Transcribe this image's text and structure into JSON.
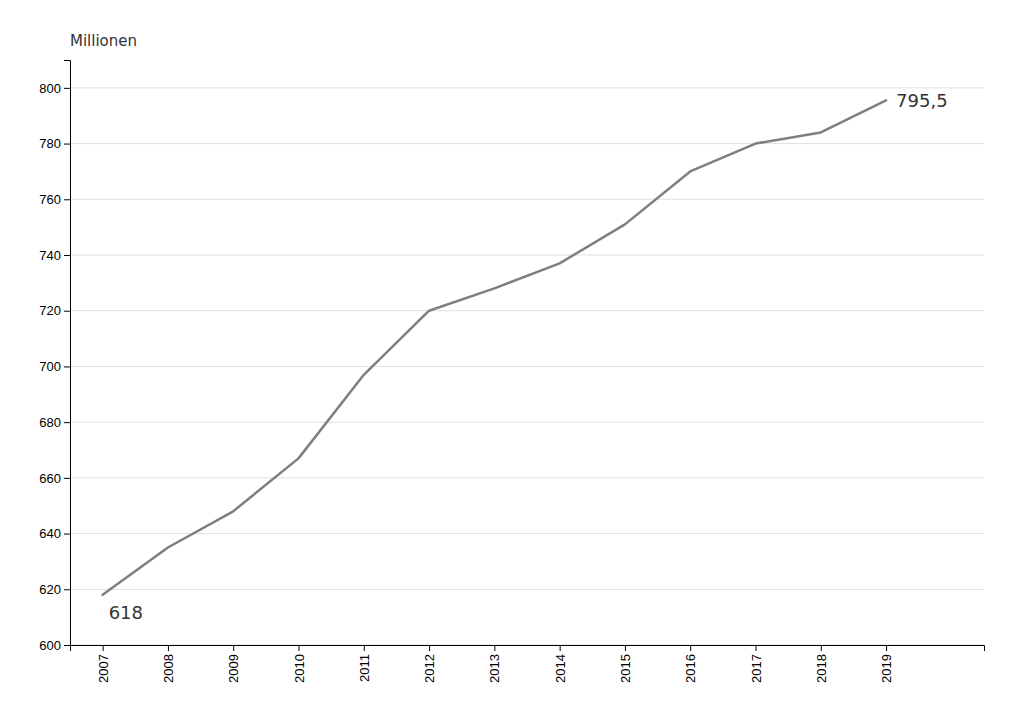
{
  "chart_data": {
    "type": "line",
    "y_label": "Millionen",
    "x": [
      2007,
      2008,
      2009,
      2010,
      2011,
      2012,
      2013,
      2014,
      2015,
      2016,
      2017,
      2018,
      2019
    ],
    "values": [
      618,
      635,
      648,
      667,
      697,
      720,
      728,
      737,
      751,
      770,
      780,
      784,
      795.5
    ],
    "color": "#7f7f7f",
    "xlim": [
      2006.5,
      2020.5
    ],
    "xticks": [
      2007,
      2008,
      2009,
      2010,
      2011,
      2012,
      2013,
      2014,
      2015,
      2016,
      2017,
      2018,
      2019
    ],
    "ylim": [
      600,
      810
    ],
    "yticks": [
      600,
      620,
      640,
      660,
      680,
      700,
      720,
      740,
      760,
      780,
      800
    ],
    "grid": true,
    "annotations": [
      {
        "text": "618",
        "x": 2007,
        "y": 618
      },
      {
        "text": "795,5",
        "x": 2019,
        "y": 795.5
      }
    ]
  }
}
